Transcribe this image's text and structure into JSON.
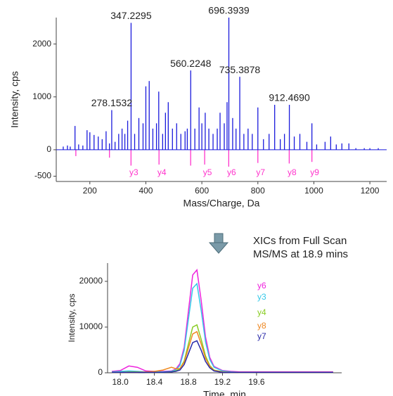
{
  "chart_data": [
    {
      "type": "stem",
      "x_label": "Mass/Charge, Da",
      "y_label": "Intensity, cps",
      "xlim": [
        80,
        1260
      ],
      "ylim": [
        -600,
        2500
      ],
      "xticks": [
        200,
        400,
        600,
        800,
        1000,
        1200
      ],
      "yticks": [
        2000,
        1000,
        0,
        -500
      ],
      "series": [
        {
          "color": "#1a1adc",
          "x": [
            105,
            120,
            130,
            147,
            160,
            175,
            190,
            200,
            215,
            230,
            244,
            258,
            270,
            278.1532,
            290,
            303,
            315,
            325,
            335,
            347.2295,
            360,
            375,
            390,
            400,
            412,
            425,
            438,
            446,
            460,
            470,
            480,
            495,
            510,
            525,
            540,
            548,
            560.2248,
            575,
            590,
            600,
            612,
            625,
            640,
            655,
            665,
            680,
            690,
            696.3939,
            710,
            722,
            735.3878,
            750,
            765,
            780,
            800,
            820,
            840,
            860,
            880,
            895,
            912.469,
            930,
            950,
            975,
            993,
            1010,
            1040,
            1060,
            1080,
            1100,
            1125,
            1150,
            1180,
            1200,
            1230
          ],
          "values": [
            60,
            80,
            60,
            450,
            100,
            80,
            370,
            330,
            280,
            250,
            200,
            350,
            120,
            750,
            150,
            300,
            400,
            300,
            550,
            2400,
            300,
            600,
            500,
            1200,
            1300,
            400,
            500,
            1100,
            300,
            700,
            900,
            400,
            500,
            300,
            350,
            400,
            1500,
            400,
            800,
            500,
            700,
            400,
            300,
            400,
            700,
            500,
            900,
            2500,
            600,
            400,
            1380,
            300,
            400,
            300,
            800,
            200,
            300,
            850,
            200,
            300,
            850,
            250,
            300,
            150,
            500,
            100,
            150,
            250,
            100,
            120,
            120,
            30,
            30,
            30,
            30
          ]
        },
        {
          "color": "#ff33cc",
          "x": [
            150,
            270,
            347,
            447,
            560,
            610,
            696,
            800,
            912,
            993
          ],
          "values": [
            -120,
            -150,
            -300,
            -280,
            -300,
            -280,
            -320,
            -250,
            -260,
            -230
          ],
          "labels_at": [
            2,
            3,
            5,
            6,
            7,
            8,
            9
          ],
          "labels": [
            "y3",
            "y4",
            "y5",
            "y6",
            "y7",
            "y8",
            "y9"
          ]
        }
      ],
      "annotations": [
        {
          "x": 278.1532,
          "y": 750,
          "text": "278.1532"
        },
        {
          "x": 347.2295,
          "y": 2400,
          "text": "347.2295"
        },
        {
          "x": 560.2248,
          "y": 1500,
          "text": "560.2248"
        },
        {
          "x": 696.3939,
          "y": 2500,
          "text": "696.3939"
        },
        {
          "x": 735.3878,
          "y": 1380,
          "text": "735.3878"
        },
        {
          "x": 912.469,
          "y": 850,
          "text": "912.4690"
        }
      ]
    },
    {
      "type": "line",
      "x_label": "Time, min",
      "y_label": "Intensity, cps",
      "note": [
        "XICs  from Full Scan",
        "MS/MS at 18.9 mins"
      ],
      "xlim": [
        17.85,
        20.6
      ],
      "ylim": [
        0,
        24000
      ],
      "xticks": [
        {
          "value": 18,
          "label": "18.0"
        },
        18.4,
        18.8,
        19.2,
        19.6
      ],
      "yticks": [
        0,
        10000,
        20000
      ],
      "x": [
        17.9,
        18.0,
        18.1,
        18.2,
        18.3,
        18.4,
        18.5,
        18.6,
        18.65,
        18.7,
        18.75,
        18.8,
        18.85,
        18.9,
        18.95,
        19.0,
        19.05,
        19.1,
        19.2,
        19.3,
        19.4,
        19.6,
        19.8,
        20.0,
        20.2,
        20.5
      ],
      "series": [
        {
          "name": "y6",
          "color": "#ee22dd",
          "values": [
            300,
            500,
            1500,
            1200,
            400,
            300,
            300,
            400,
            800,
            2000,
            5600,
            13500,
            21400,
            22500,
            15800,
            7900,
            3400,
            1400,
            500,
            300,
            200,
            200,
            200,
            200,
            200,
            200
          ]
        },
        {
          "name": "y3",
          "color": "#33c8e8",
          "values": [
            200,
            300,
            400,
            300,
            200,
            200,
            200,
            300,
            600,
            1600,
            4900,
            11700,
            18500,
            19500,
            13600,
            6800,
            2900,
            1200,
            400,
            200,
            100,
            100,
            100,
            100,
            100,
            100
          ]
        },
        {
          "name": "y4",
          "color": "#88cc22",
          "values": [
            100,
            100,
            200,
            200,
            100,
            100,
            100,
            200,
            400,
            900,
            2600,
            6300,
            10000,
            10500,
            7300,
            3700,
            1600,
            600,
            200,
            100,
            100,
            100,
            100,
            100,
            100,
            100
          ]
        },
        {
          "name": "y8",
          "color": "#ee8822",
          "values": [
            100,
            100,
            100,
            100,
            200,
            300,
            600,
            1200,
            900,
            900,
            2300,
            5400,
            8500,
            9000,
            6300,
            3200,
            1400,
            500,
            200,
            100,
            100,
            100,
            100,
            100,
            100,
            100
          ]
        },
        {
          "name": "y7",
          "color": "#2a2aa8",
          "values": [
            100,
            100,
            100,
            100,
            100,
            100,
            100,
            200,
            300,
            600,
            1800,
            4200,
            6600,
            7000,
            4900,
            2500,
            1100,
            400,
            100,
            100,
            100,
            100,
            100,
            100,
            100,
            100
          ]
        }
      ]
    }
  ]
}
